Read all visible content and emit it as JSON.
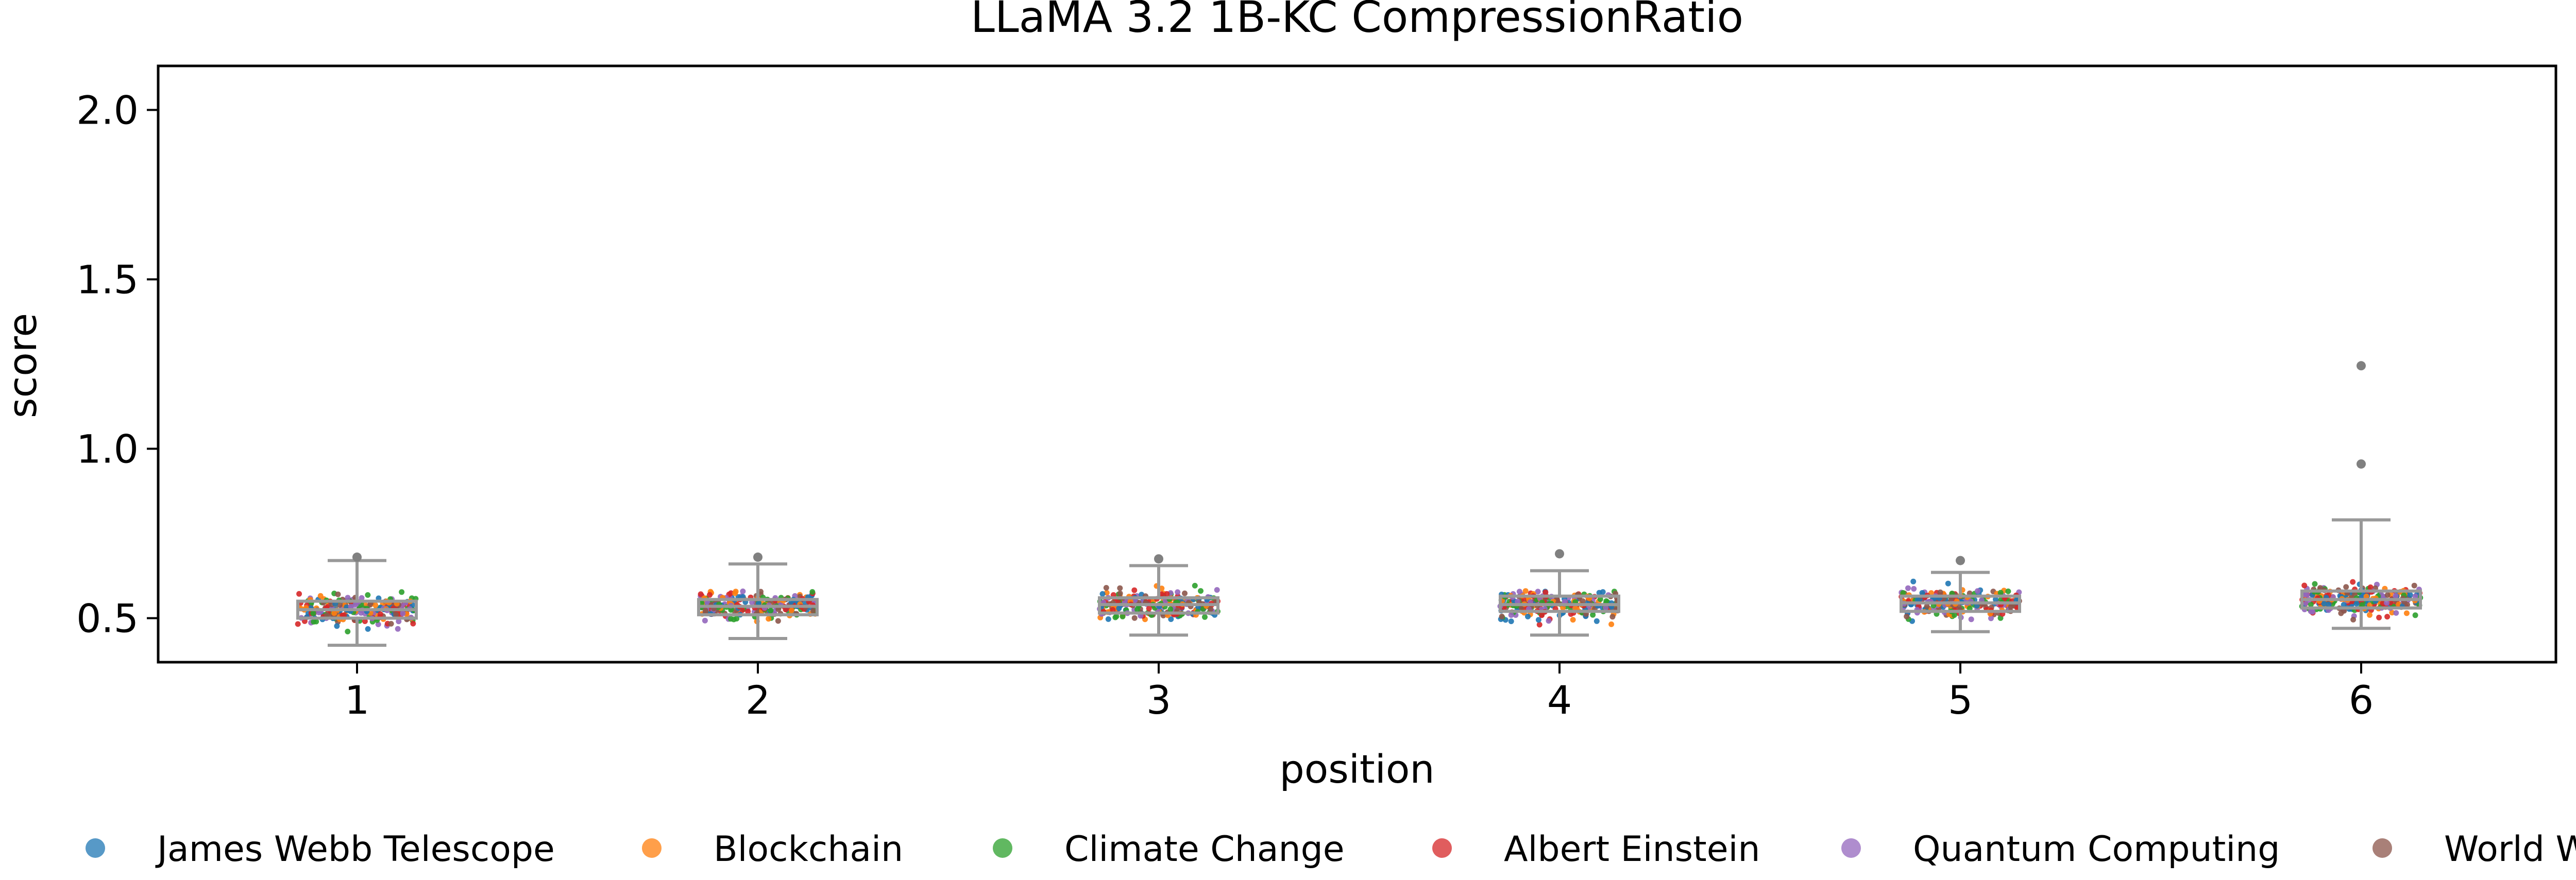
{
  "chart_data": {
    "type": "box-strip",
    "title": "LLaMA 3.2 1B-KC CompressionRatio",
    "xlabel": "position",
    "ylabel": "score",
    "categories": [
      "1",
      "2",
      "3",
      "4",
      "5",
      "6"
    ],
    "ylim": [
      0.37,
      2.13
    ],
    "yticks": [
      0.5,
      1.0,
      1.5,
      2.0
    ],
    "ytick_labels": [
      "0.5",
      "1.0",
      "1.5",
      "2.0"
    ],
    "grid": false,
    "box_color": "#999999",
    "boxes": [
      {
        "q1": 0.5,
        "median": 0.525,
        "q3": 0.55,
        "whisker_low": 0.42,
        "whisker_high": 0.67
      },
      {
        "q1": 0.51,
        "median": 0.535,
        "q3": 0.555,
        "whisker_low": 0.44,
        "whisker_high": 0.66
      },
      {
        "q1": 0.515,
        "median": 0.54,
        "q3": 0.56,
        "whisker_low": 0.45,
        "whisker_high": 0.655
      },
      {
        "q1": 0.52,
        "median": 0.54,
        "q3": 0.565,
        "whisker_low": 0.45,
        "whisker_high": 0.64
      },
      {
        "q1": 0.52,
        "median": 0.545,
        "q3": 0.565,
        "whisker_low": 0.46,
        "whisker_high": 0.635
      },
      {
        "q1": 0.53,
        "median": 0.555,
        "q3": 0.58,
        "whisker_low": 0.47,
        "whisker_high": 0.79
      }
    ],
    "outliers": [
      {
        "category": "6",
        "value": 1.245
      },
      {
        "category": "6",
        "value": 0.955
      },
      {
        "category": "1",
        "value": 0.68
      },
      {
        "category": "2",
        "value": 0.68
      },
      {
        "category": "3",
        "value": 0.675
      },
      {
        "category": "4",
        "value": 0.69
      },
      {
        "category": "5",
        "value": 0.67
      }
    ],
    "series": [
      {
        "name": "James Webb Telescope",
        "color": "#1f77b4"
      },
      {
        "name": "Blockchain",
        "color": "#ff7f0e"
      },
      {
        "name": "Climate Change",
        "color": "#2ca02c"
      },
      {
        "name": "Albert Einstein",
        "color": "#d62728"
      },
      {
        "name": "Quantum Computing",
        "color": "#9467bd"
      },
      {
        "name": "World War II",
        "color": "#8c564b"
      }
    ],
    "strip_points_per_category": 240,
    "legend_position": "bottom"
  }
}
